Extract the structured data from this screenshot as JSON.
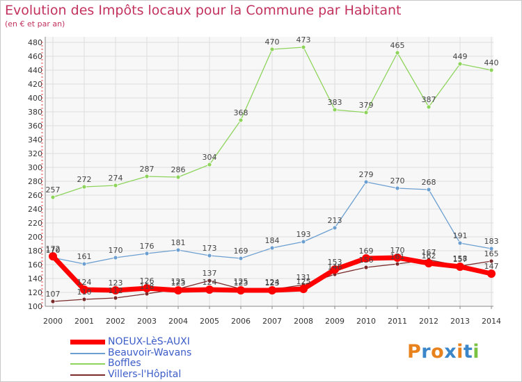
{
  "title": "Evolution des Impôts locaux pour la Commune par Habitant",
  "subtitle": "(en € et par an)",
  "logo": {
    "text": "Proxiti",
    "colors": [
      "#e8821c",
      "#3a86c8",
      "#e8821c",
      "#3a86c8",
      "#e8821c",
      "#3a86c8",
      "#7cc242"
    ]
  },
  "chart_data": {
    "type": "line",
    "title": "Evolution des Impôts locaux pour la Commune par Habitant",
    "subtitle": "(en € et par an)",
    "xlabel": "",
    "ylabel": "",
    "x": [
      "2000",
      "2001",
      "2002",
      "2003",
      "2004",
      "2005",
      "2006",
      "2007",
      "2008",
      "2009",
      "2010",
      "2011",
      "2012",
      "2013",
      "2014"
    ],
    "ylim": [
      100,
      480
    ],
    "ytick_step": 20,
    "grid": true,
    "legend_position": "bottom-left",
    "series": [
      {
        "name": "NOEUX-LèS-AUXI",
        "color": "#ff0000",
        "values": [
          172,
          124,
          123,
          126,
          123,
          124,
          123,
          123,
          125,
          153,
          169,
          170,
          162,
          157,
          147
        ]
      },
      {
        "name": "Beauvoir-Wavans",
        "color": "#6c9fd0",
        "values": [
          170,
          161,
          170,
          176,
          181,
          173,
          169,
          184,
          193,
          213,
          279,
          270,
          268,
          191,
          183
        ]
      },
      {
        "name": "Boffles",
        "color": "#8ed45c",
        "values": [
          257,
          272,
          274,
          287,
          286,
          304,
          368,
          470,
          473,
          383,
          379,
          465,
          387,
          449,
          440
        ]
      },
      {
        "name": "Villers-l'Hôpital",
        "color": "#7a2a2a",
        "values": [
          107,
          110,
          112,
          118,
          125,
          137,
          125,
          124,
          131,
          146,
          156,
          161,
          167,
          158,
          165
        ]
      }
    ]
  }
}
